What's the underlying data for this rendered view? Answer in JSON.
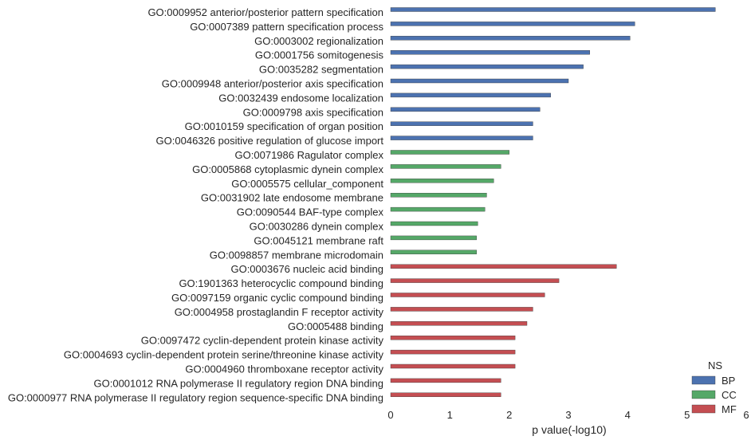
{
  "chart_data": {
    "type": "bar",
    "orientation": "horizontal",
    "xlabel": "p value(-log10)",
    "ylabel": "",
    "xlim": [
      0,
      6
    ],
    "x_ticks": [
      "0",
      "1",
      "2",
      "3",
      "4",
      "5",
      "6"
    ],
    "grid": false,
    "legend": {
      "title": "NS",
      "placement": "bottom-right",
      "entries": [
        {
          "name": "BP",
          "color": "#4c72b0"
        },
        {
          "name": "CC",
          "color": "#55a868"
        },
        {
          "name": "MF",
          "color": "#c44e52"
        }
      ]
    },
    "bars": [
      {
        "category": "GO:0009952 anterior/posterior pattern specification",
        "group": "BP",
        "value": 5.48
      },
      {
        "category": "GO:0007389 pattern specification process",
        "group": "BP",
        "value": 4.12
      },
      {
        "category": "GO:0003002 regionalization",
        "group": "BP",
        "value": 4.04
      },
      {
        "category": "GO:0001756 somitogenesis",
        "group": "BP",
        "value": 3.36
      },
      {
        "category": "GO:0035282 segmentation",
        "group": "BP",
        "value": 3.25
      },
      {
        "category": "GO:0009948 anterior/posterior axis specification",
        "group": "BP",
        "value": 3.0
      },
      {
        "category": "GO:0032439 endosome localization",
        "group": "BP",
        "value": 2.7
      },
      {
        "category": "GO:0009798 axis specification",
        "group": "BP",
        "value": 2.52
      },
      {
        "category": "GO:0010159 specification of organ position",
        "group": "BP",
        "value": 2.4
      },
      {
        "category": "GO:0046326 positive regulation of glucose import",
        "group": "BP",
        "value": 2.4
      },
      {
        "category": "GO:0071986 Ragulator complex",
        "group": "CC",
        "value": 2.0
      },
      {
        "category": "GO:0005868 cytoplasmic dynein complex",
        "group": "CC",
        "value": 1.86
      },
      {
        "category": "GO:0005575 cellular_component",
        "group": "CC",
        "value": 1.74
      },
      {
        "category": "GO:0031902 late endosome membrane",
        "group": "CC",
        "value": 1.62
      },
      {
        "category": "GO:0090544 BAF-type complex",
        "group": "CC",
        "value": 1.59
      },
      {
        "category": "GO:0030286 dynein complex",
        "group": "CC",
        "value": 1.47
      },
      {
        "category": "GO:0045121 membrane raft",
        "group": "CC",
        "value": 1.45
      },
      {
        "category": "GO:0098857 membrane microdomain",
        "group": "CC",
        "value": 1.45
      },
      {
        "category": "GO:0003676 nucleic acid binding",
        "group": "MF",
        "value": 3.81
      },
      {
        "category": "GO:1901363 heterocyclic compound binding",
        "group": "MF",
        "value": 2.84
      },
      {
        "category": "GO:0097159 organic cyclic compound binding",
        "group": "MF",
        "value": 2.6
      },
      {
        "category": "GO:0004958 prostaglandin F receptor activity",
        "group": "MF",
        "value": 2.4
      },
      {
        "category": "GO:0005488 binding",
        "group": "MF",
        "value": 2.3
      },
      {
        "category": "GO:0097472 cyclin-dependent protein kinase activity",
        "group": "MF",
        "value": 2.1
      },
      {
        "category": "GO:0004693 cyclin-dependent protein serine/threonine kinase activity",
        "group": "MF",
        "value": 2.1
      },
      {
        "category": "GO:0004960 thromboxane receptor activity",
        "group": "MF",
        "value": 2.1
      },
      {
        "category": "GO:0001012 RNA polymerase II regulatory region DNA binding",
        "group": "MF",
        "value": 1.86
      },
      {
        "category": "GO:0000977 RNA polymerase II regulatory region sequence-specific DNA binding",
        "group": "MF",
        "value": 1.86
      }
    ]
  }
}
